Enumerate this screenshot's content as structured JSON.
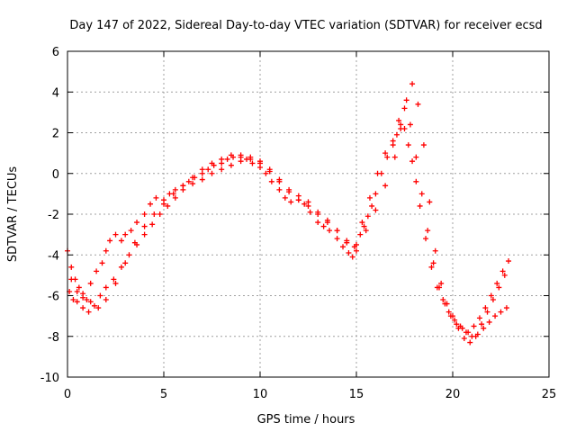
{
  "chart_data": {
    "type": "scatter",
    "title": "Day 147 of 2022, Sidereal Day-to-day VTEC variation (SDTVAR) for receiver ecsd",
    "xlabel": "GPS time / hours",
    "ylabel": "SDTVAR / TECUs",
    "xlim": [
      0,
      25
    ],
    "ylim": [
      -10,
      6
    ],
    "xticks": [
      0,
      5,
      10,
      15,
      20,
      25
    ],
    "yticks": [
      -10,
      -8,
      -6,
      -4,
      -2,
      0,
      2,
      4,
      6
    ],
    "grid": true,
    "marker": "+",
    "color": "#ff0000",
    "series": [
      {
        "name": "SDTVAR",
        "x": [
          0.0,
          0.2,
          0.4,
          0.6,
          0.8,
          1.0,
          1.2,
          1.5,
          1.8,
          2.0,
          2.2,
          2.5,
          2.8,
          3.0,
          3.3,
          3.6,
          4.0,
          4.3,
          4.6,
          5.0,
          5.3,
          5.6,
          6.0,
          6.3,
          6.6,
          7.0,
          7.3,
          7.6,
          8.0,
          8.3,
          8.6,
          9.0,
          9.3,
          9.6,
          10.0,
          10.3,
          10.6,
          11.0,
          11.3,
          11.6,
          12.0,
          12.3,
          12.6,
          13.0,
          13.3,
          13.6,
          14.0,
          14.3,
          14.6,
          14.8,
          15.0,
          15.2,
          15.4,
          15.6,
          15.8,
          16.0,
          16.3,
          16.6,
          16.9,
          17.1,
          17.3,
          17.5,
          17.7,
          17.9,
          18.1,
          18.3,
          18.6,
          18.9,
          19.2,
          19.5,
          19.8,
          20.1,
          20.4,
          20.7,
          21.0,
          21.3,
          21.6,
          21.9,
          22.2,
          22.5,
          22.8,
          0.1,
          0.3,
          0.5,
          0.8,
          1.1,
          1.4,
          1.7,
          2.0,
          2.4,
          2.8,
          3.2,
          3.6,
          4.0,
          4.4,
          4.8,
          5.2,
          5.6,
          6.0,
          6.5,
          7.0,
          7.5,
          8.0,
          8.5,
          9.0,
          9.5,
          10.0,
          10.5,
          11.0,
          11.5,
          12.0,
          12.5,
          13.0,
          13.5,
          14.0,
          14.5,
          15.0,
          15.5,
          16.0,
          16.5,
          17.0,
          17.3,
          17.6,
          17.9,
          18.2,
          18.5,
          18.8,
          19.1,
          19.4,
          19.7,
          20.0,
          20.3,
          20.6,
          20.9,
          21.2,
          21.5,
          21.8,
          22.1,
          22.4,
          22.7,
          0.2,
          0.5,
          0.8,
          1.2,
          1.6,
          2.0,
          2.5,
          3.0,
          3.5,
          4.0,
          4.5,
          5.0,
          5.5,
          6.0,
          6.5,
          7.0,
          7.5,
          8.0,
          8.5,
          9.0,
          9.5,
          10.0,
          10.5,
          11.0,
          11.5,
          12.0,
          12.5,
          13.0,
          13.5,
          14.0,
          14.5,
          14.9,
          15.3,
          15.7,
          16.1,
          16.5,
          16.9,
          17.2,
          17.5,
          17.8,
          18.1,
          18.4,
          18.7,
          19.0,
          19.3,
          19.6,
          19.9,
          20.2,
          20.5,
          20.8,
          21.1,
          21.4,
          21.7,
          22.0,
          22.3,
          22.6,
          22.9
        ],
        "y": [
          -3.8,
          -4.6,
          -5.2,
          -5.6,
          -5.9,
          -6.2,
          -5.4,
          -4.8,
          -4.4,
          -3.8,
          -3.3,
          -3.0,
          -3.3,
          -3.0,
          -2.8,
          -2.4,
          -2.0,
          -1.5,
          -1.2,
          -1.3,
          -1.0,
          -0.8,
          -0.6,
          -0.4,
          -0.2,
          0.0,
          0.2,
          0.4,
          0.5,
          0.7,
          0.8,
          0.8,
          0.7,
          0.5,
          0.3,
          0.0,
          -0.4,
          -0.8,
          -1.2,
          -1.4,
          -1.3,
          -1.5,
          -1.9,
          -2.4,
          -2.6,
          -2.8,
          -3.2,
          -3.6,
          -3.9,
          -4.1,
          -3.5,
          -3.0,
          -2.6,
          -2.1,
          -1.6,
          -1.0,
          0.0,
          0.8,
          1.4,
          1.9,
          2.4,
          2.2,
          1.4,
          0.6,
          -0.4,
          -1.6,
          -3.2,
          -4.6,
          -5.6,
          -6.2,
          -6.8,
          -7.2,
          -7.5,
          -7.8,
          -8.0,
          -7.9,
          -7.6,
          -7.3,
          -7.0,
          -6.8,
          -6.6,
          -5.8,
          -6.2,
          -6.3,
          -6.6,
          -6.8,
          -6.5,
          -6.0,
          -5.6,
          -5.2,
          -4.6,
          -4.0,
          -3.5,
          -3.0,
          -2.5,
          -2.0,
          -1.6,
          -1.2,
          -0.8,
          -0.5,
          -0.3,
          0.0,
          0.2,
          0.4,
          0.6,
          0.7,
          0.6,
          0.2,
          -0.3,
          -0.8,
          -1.1,
          -1.4,
          -1.9,
          -2.3,
          -2.8,
          -3.4,
          -3.8,
          -2.8,
          -1.8,
          -0.6,
          0.8,
          2.2,
          3.6,
          4.4,
          3.4,
          1.4,
          -1.4,
          -3.8,
          -5.4,
          -6.4,
          -7.0,
          -7.6,
          -8.1,
          -8.3,
          -8.0,
          -7.4,
          -6.8,
          -6.2,
          -5.6,
          -5.0,
          -5.2,
          -5.8,
          -6.1,
          -6.3,
          -6.6,
          -6.2,
          -5.4,
          -4.4,
          -3.4,
          -2.6,
          -2.0,
          -1.5,
          -1.0,
          -0.6,
          -0.2,
          0.2,
          0.5,
          0.7,
          0.9,
          0.9,
          0.8,
          0.5,
          0.1,
          -0.4,
          -0.9,
          -1.3,
          -1.6,
          -2.0,
          -2.4,
          -2.8,
          -3.3,
          -3.6,
          -2.4,
          -1.2,
          0.0,
          1.0,
          1.6,
          2.6,
          3.2,
          2.4,
          0.8,
          -1.0,
          -2.8,
          -4.4,
          -5.6,
          -6.4,
          -7.0,
          -7.4,
          -7.6,
          -7.8,
          -7.5,
          -7.1,
          -6.6,
          -6.0,
          -5.4,
          -4.8,
          -4.3
        ]
      }
    ]
  }
}
